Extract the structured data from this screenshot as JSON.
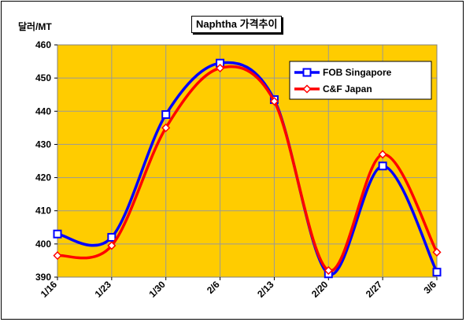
{
  "chart_data": {
    "type": "line",
    "title": "Naphtha 가격추이",
    "ylabel": "달러/MT",
    "xlabel": "",
    "categories": [
      "1/16",
      "1/23",
      "1/30",
      "2/6",
      "2/13",
      "2/20",
      "2/27",
      "3/6"
    ],
    "ylim": [
      390,
      460
    ],
    "yticks": [
      390,
      400,
      410,
      420,
      430,
      440,
      450,
      460
    ],
    "grid": true,
    "legend_position": "top-right",
    "series": [
      {
        "name": "FOB Singapore",
        "values": [
          403,
          402,
          439,
          454.5,
          443.5,
          391,
          423.5,
          391.5
        ],
        "color": "#0000ff",
        "marker": "square"
      },
      {
        "name": "C&F Japan",
        "values": [
          396.5,
          399.5,
          435,
          453,
          443,
          392,
          427,
          397.5
        ],
        "color": "#ff0000",
        "marker": "diamond"
      }
    ],
    "colors": {
      "plot_background": "#ffcc00",
      "grid": "#999999"
    }
  }
}
